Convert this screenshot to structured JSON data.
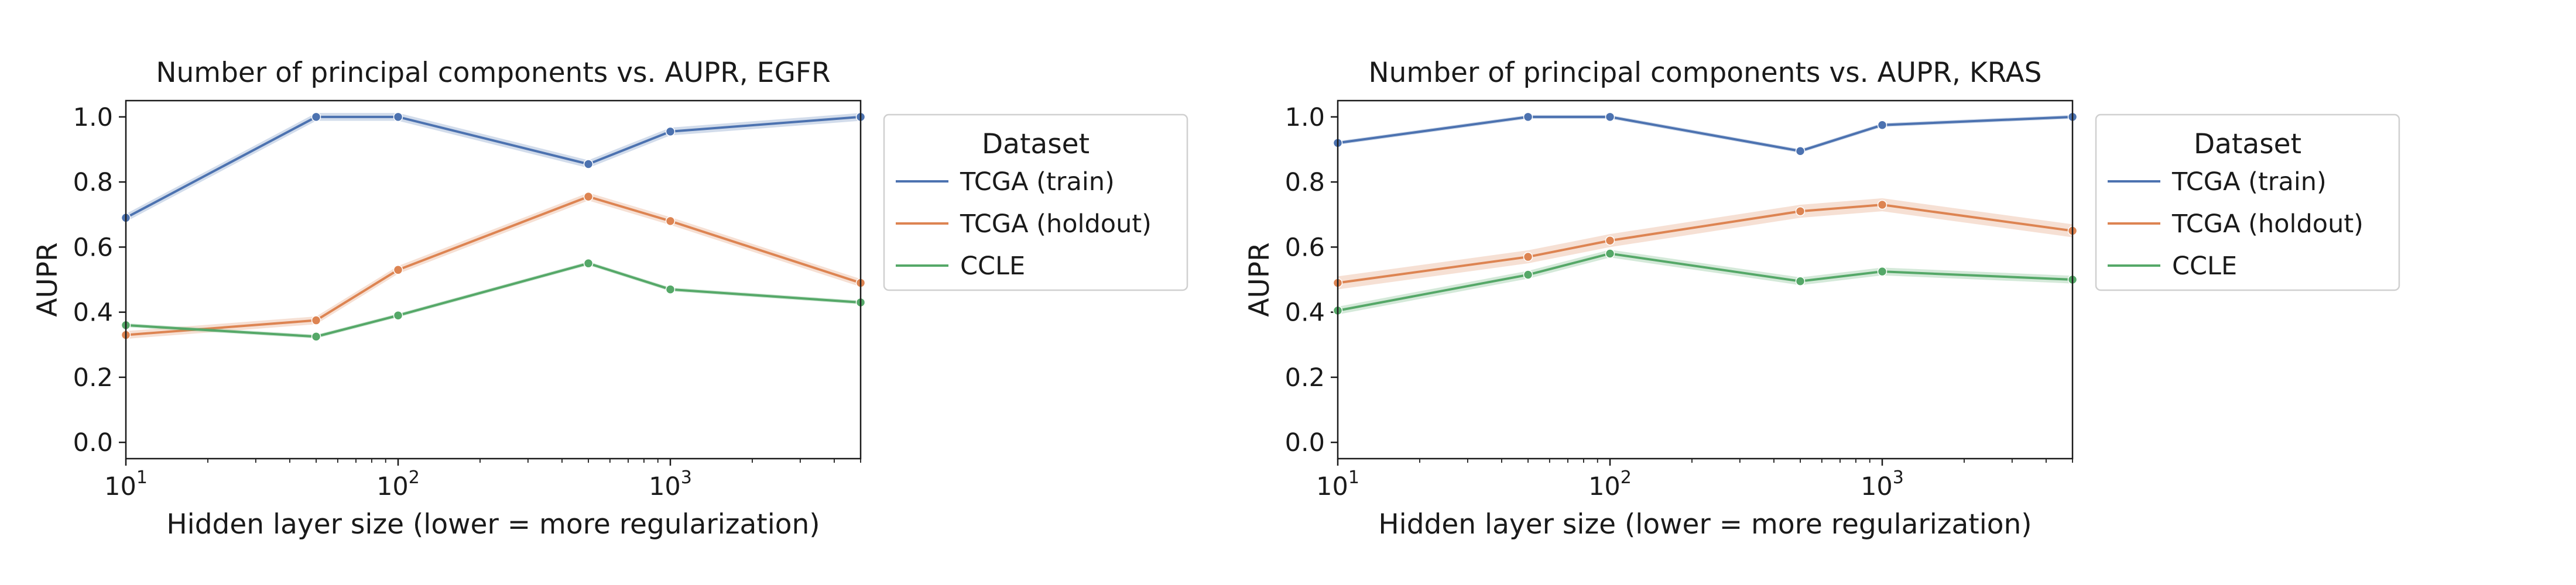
{
  "colors": {
    "train": "#4c72b0",
    "holdout": "#dd8452",
    "ccle": "#55a868",
    "axis": "#1a1a1a",
    "legend_border": "#d0d0d0"
  },
  "chart_data": [
    {
      "type": "line",
      "title": "Number of principal components vs. AUPR, EGFR",
      "xlabel": "Hidden layer size (lower = more regularization)",
      "ylabel": "AUPR",
      "xscale": "log",
      "xlim": [
        10,
        5000
      ],
      "ylim": [
        -0.05,
        1.05
      ],
      "xticks": [
        10,
        100,
        1000
      ],
      "xtick_labels": [
        {
          "base": "10",
          "exp": "1"
        },
        {
          "base": "10",
          "exp": "2"
        },
        {
          "base": "10",
          "exp": "3"
        }
      ],
      "yticks": [
        "0.0",
        "0.2",
        "0.4",
        "0.6",
        "0.8",
        "1.0"
      ],
      "x": [
        10,
        50,
        100,
        500,
        1000,
        5000
      ],
      "series": [
        {
          "name": "TCGA (train)",
          "color": "#4c72b0",
          "values": [
            0.69,
            1.0,
            1.0,
            0.855,
            0.955,
            1.0
          ],
          "band": 0.012
        },
        {
          "name": "TCGA (holdout)",
          "color": "#dd8452",
          "values": [
            0.33,
            0.375,
            0.53,
            0.755,
            0.68,
            0.49
          ],
          "band": 0.012
        },
        {
          "name": "CCLE",
          "color": "#55a868",
          "values": [
            0.36,
            0.325,
            0.39,
            0.55,
            0.47,
            0.43
          ],
          "band": 0.006
        }
      ],
      "legend": {
        "title": "Dataset",
        "placement": "outside-right-top"
      }
    },
    {
      "type": "line",
      "title": "Number of principal components vs. AUPR, KRAS",
      "xlabel": "Hidden layer size (lower = more regularization)",
      "ylabel": "AUPR",
      "xscale": "log",
      "xlim": [
        10,
        5000
      ],
      "ylim": [
        -0.05,
        1.05
      ],
      "xticks": [
        10,
        100,
        1000
      ],
      "xtick_labels": [
        {
          "base": "10",
          "exp": "1"
        },
        {
          "base": "10",
          "exp": "2"
        },
        {
          "base": "10",
          "exp": "3"
        }
      ],
      "yticks": [
        "0.0",
        "0.2",
        "0.4",
        "0.6",
        "0.8",
        "1.0"
      ],
      "x": [
        10,
        50,
        100,
        500,
        1000,
        5000
      ],
      "series": [
        {
          "name": "TCGA (train)",
          "color": "#4c72b0",
          "values": [
            0.92,
            1.0,
            1.0,
            0.895,
            0.975,
            1.0
          ],
          "band": 0.006
        },
        {
          "name": "TCGA (holdout)",
          "color": "#dd8452",
          "values": [
            0.49,
            0.57,
            0.62,
            0.71,
            0.73,
            0.65
          ],
          "band": 0.02
        },
        {
          "name": "CCLE",
          "color": "#55a868",
          "values": [
            0.405,
            0.515,
            0.58,
            0.495,
            0.525,
            0.5
          ],
          "band": 0.012
        }
      ],
      "legend": {
        "title": "Dataset",
        "placement": "outside-right-top"
      }
    }
  ]
}
